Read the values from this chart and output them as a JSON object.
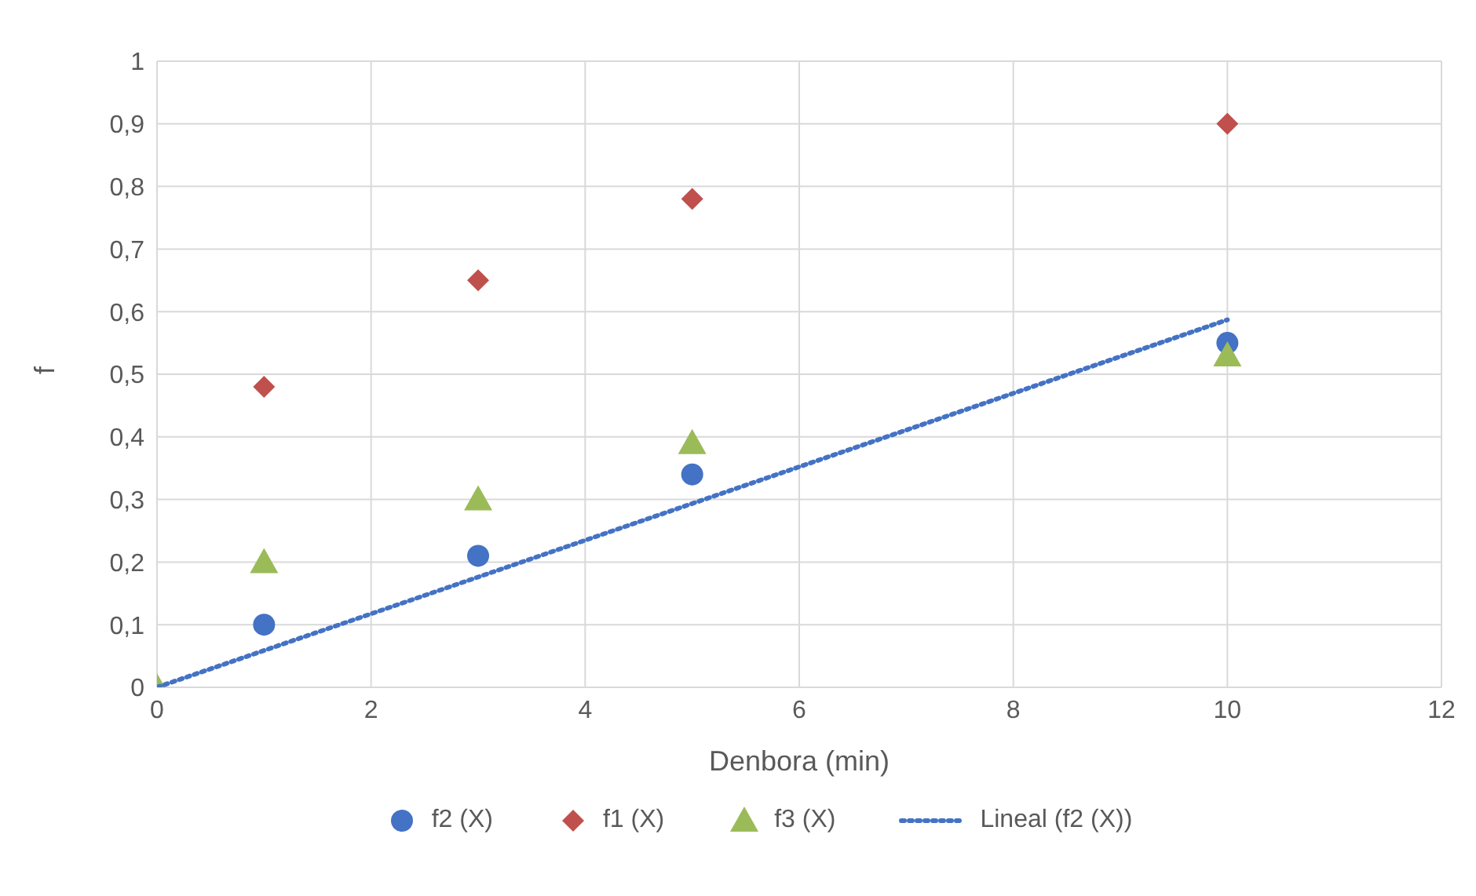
{
  "chart_data": {
    "type": "scatter",
    "xlabel": "Denbora (min)",
    "ylabel": "f",
    "xlim": [
      0,
      12
    ],
    "xticks": [
      0,
      2,
      4,
      6,
      8,
      10,
      12
    ],
    "ylim": [
      0,
      1
    ],
    "yticks": [
      0,
      {
        "value": 0.1,
        "label": "0,1"
      },
      {
        "value": 0.2,
        "label": "0,2"
      },
      {
        "value": 0.3,
        "label": "0,3"
      },
      {
        "value": 0.4,
        "label": "0,4"
      },
      {
        "value": 0.5,
        "label": "0,5"
      },
      {
        "value": 0.6,
        "label": "0,6"
      },
      {
        "value": 0.7,
        "label": "0,7"
      },
      {
        "value": 0.8,
        "label": "0,8"
      },
      {
        "value": 0.9,
        "label": "0,9"
      },
      1
    ],
    "grid": true,
    "legend": "bottom",
    "x": [
      0,
      1,
      3,
      5,
      10
    ],
    "series": [
      {
        "name": "f2 (X)",
        "color": "#4472c4",
        "marker": "circle",
        "values": [
          null,
          0.1,
          0.21,
          0.34,
          0.55
        ]
      },
      {
        "name": "f1 (X)",
        "color": "#c0504d",
        "marker": "diamond",
        "values": [
          null,
          0.48,
          0.65,
          0.78,
          0.9
        ]
      },
      {
        "name": "f3 (X)",
        "color": "#9bbb59",
        "marker": "triangle",
        "values": [
          0,
          0.2,
          0.3,
          0.39,
          0.53
        ]
      },
      {
        "name": "Lineal (f2 (X))",
        "type": "line",
        "color": "#4472c4",
        "marker": "none",
        "line_style": "dotted",
        "x": [
          0,
          10
        ],
        "values": [
          0,
          0.587
        ]
      }
    ]
  }
}
